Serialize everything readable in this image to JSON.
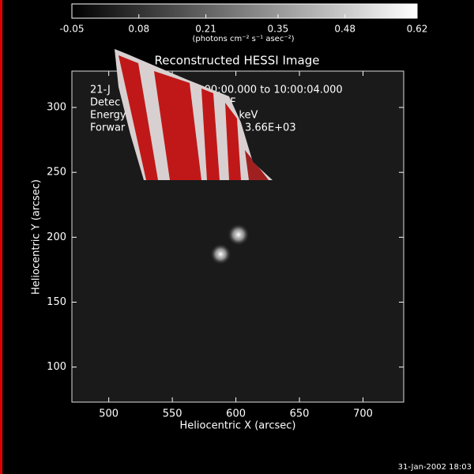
{
  "chart_data": {
    "type": "image",
    "title": "Reconstructed HESSI Image",
    "x_label": "Heliocentric X (arcsec)",
    "y_label": "Heliocentric Y (arcsec)",
    "xlim": [
      471,
      732
    ],
    "xticks": [
      500,
      550,
      600,
      650,
      700
    ],
    "ylim": [
      73,
      328
    ],
    "yticks": [
      100,
      150,
      200,
      250,
      300
    ],
    "colorbar": {
      "label": "(photons cm⁻² s⁻¹ asec⁻²)",
      "lim": [
        -0.05,
        0.62
      ],
      "ticks": [
        {
          "value": -0.05,
          "label": "-0.05"
        },
        {
          "value": 0.08,
          "label": "0.08"
        },
        {
          "value": 0.21,
          "label": "0.21"
        },
        {
          "value": 0.35,
          "label": "0.35"
        },
        {
          "value": 0.48,
          "label": "0.48"
        },
        {
          "value": 0.62,
          "label": "0.62"
        }
      ]
    },
    "sources": [
      {
        "x": 602,
        "y": 202,
        "value": 0.62
      },
      {
        "x": 588,
        "y": 187,
        "value": 0.55
      }
    ],
    "annotations": [
      "21-J",
      "0:00:00.000 to 10:00:04.000",
      "Detec",
      "7F 8F",
      "Energy",
      "0 keV",
      "Forwar",
      "3.66E+03"
    ],
    "timestamp": "31-Jan-2002 18:03"
  }
}
